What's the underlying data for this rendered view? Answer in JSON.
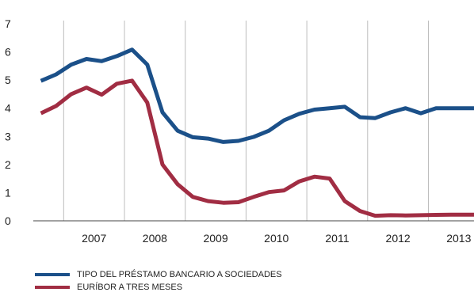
{
  "chart_data": {
    "type": "line",
    "title": "",
    "xlabel": "",
    "ylabel": "",
    "x_tick_labels": [
      "2007",
      "2008",
      "2009",
      "2010",
      "2011",
      "2012",
      "2013"
    ],
    "y_ticks": [
      0,
      1,
      2,
      3,
      4,
      5,
      6,
      7
    ],
    "ylim": [
      0,
      7
    ],
    "xlim": [
      2006.5,
      2013.75
    ],
    "grid": "vertical lines between years",
    "legend_position": "bottom-left",
    "x": [
      2006.625,
      2006.875,
      2007.125,
      2007.375,
      2007.625,
      2007.875,
      2008.125,
      2008.375,
      2008.625,
      2008.875,
      2009.125,
      2009.375,
      2009.625,
      2009.875,
      2010.125,
      2010.375,
      2010.625,
      2010.875,
      2011.125,
      2011.375,
      2011.625,
      2011.875,
      2012.125,
      2012.375,
      2012.625,
      2012.875,
      2013.125,
      2013.375,
      2013.625,
      2013.75
    ],
    "series": [
      {
        "name": "TIPO DEL PRÉSTAMO BANCARIO A SOCIEDADES",
        "color": "#1b5089",
        "values": [
          4.97,
          5.2,
          5.55,
          5.75,
          5.67,
          5.85,
          6.08,
          5.55,
          3.85,
          3.2,
          2.97,
          2.92,
          2.8,
          2.84,
          2.98,
          3.2,
          3.57,
          3.8,
          3.95,
          4.0,
          4.05,
          3.68,
          3.65,
          3.85,
          4.0,
          3.82,
          4.0,
          4.0,
          4.0,
          4.0
        ]
      },
      {
        "name": "EURÍBOR A TRES MESES",
        "color": "#a12d43",
        "values": [
          3.82,
          4.08,
          4.5,
          4.73,
          4.48,
          4.87,
          4.98,
          4.2,
          2.0,
          1.3,
          0.85,
          0.7,
          0.64,
          0.66,
          0.85,
          1.02,
          1.08,
          1.4,
          1.57,
          1.5,
          0.7,
          0.35,
          0.18,
          0.2,
          0.19,
          0.2,
          0.21,
          0.22,
          0.22,
          0.22
        ]
      }
    ]
  }
}
